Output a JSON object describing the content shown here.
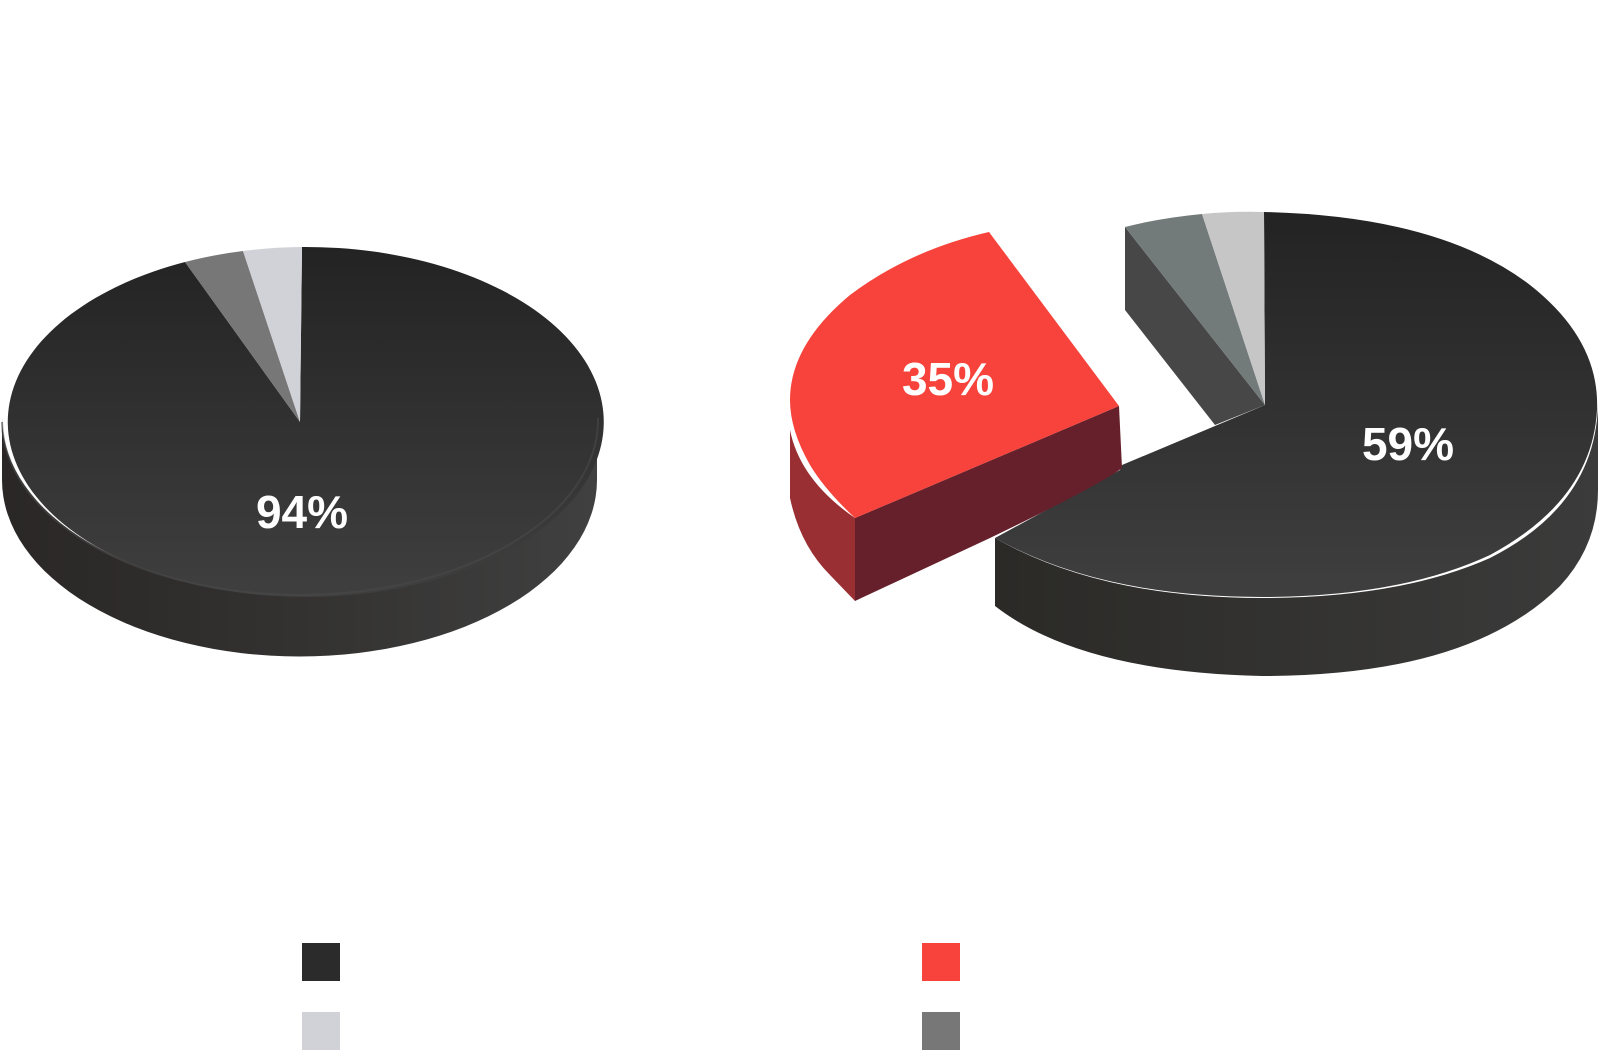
{
  "chart_data": [
    {
      "type": "pie",
      "title": "",
      "slices": [
        {
          "value": 94,
          "label": "94%",
          "color": "#2b2b2b"
        },
        {
          "value": 2,
          "label": "",
          "color": "#777777"
        },
        {
          "value": 4,
          "label": "",
          "color": "#d1d1d8"
        }
      ]
    },
    {
      "type": "pie",
      "title": "",
      "slices": [
        {
          "value": 59,
          "label": "59%",
          "color": "#2b2b2b"
        },
        {
          "value": 35,
          "label": "35%",
          "color": "#f7433b",
          "exploded": true
        },
        {
          "value": 3,
          "label": "",
          "color": "#727b79"
        },
        {
          "value": 3,
          "label": "",
          "color": "#c6c6c6"
        }
      ]
    }
  ],
  "legend": {
    "items": [
      {
        "color": "#2b2b2b",
        "label": ""
      },
      {
        "color": "#f7433b",
        "label": ""
      },
      {
        "color": "#d1d1d8",
        "label": ""
      },
      {
        "color": "#777777",
        "label": ""
      }
    ]
  }
}
